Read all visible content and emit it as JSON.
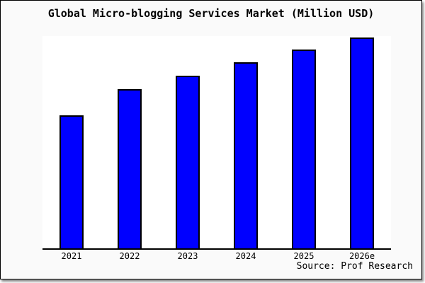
{
  "window": {
    "background": "#fafafa",
    "border_color": "#000000",
    "plot_background": "#ffffff"
  },
  "chart_data": {
    "type": "bar",
    "title": "Global Micro-blogging Services Market (Million USD)",
    "categories": [
      "2021",
      "2022",
      "2023",
      "2024",
      "2025",
      "2026e"
    ],
    "values": [
      62.7,
      75.0,
      81.3,
      87.7,
      93.7,
      99.3
    ],
    "values_note": "relative scale estimated from bar heights; no y-axis tick labels are shown in the chart",
    "xlabel": "",
    "ylabel": "",
    "ylim": [
      0,
      100
    ],
    "grid": false,
    "legend": false,
    "y_axis_ticks_shown": false,
    "bar_fill_color": "#0000ff",
    "bar_border_color": "#000000",
    "axis_color": "#000000"
  },
  "source_label": "Source: Prof Research"
}
